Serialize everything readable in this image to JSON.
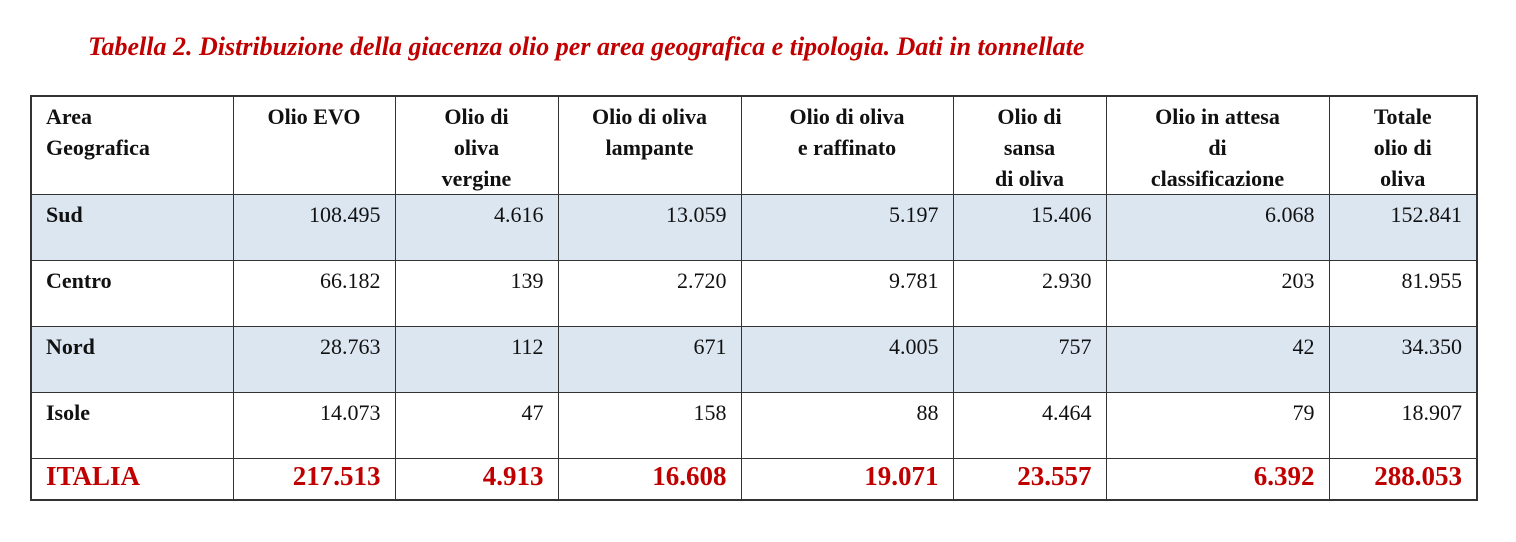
{
  "title": "Tabella 2. Distribuzione della giacenza olio per area geografica e tipologia. Dati in tonnellate",
  "table": {
    "header": [
      [
        "Area",
        "Geografica"
      ],
      [
        "Olio EVO"
      ],
      [
        "Olio di",
        "oliva",
        "vergine"
      ],
      [
        "Olio di oliva",
        "lampante"
      ],
      [
        "Olio di oliva",
        "e raffinato"
      ],
      [
        "Olio di",
        "sansa",
        "di oliva"
      ],
      [
        "Olio in attesa",
        "di",
        "classificazione"
      ],
      [
        "Totale",
        "olio di",
        "oliva"
      ]
    ],
    "rows": [
      [
        "Sud",
        "108.495",
        "4.616",
        "13.059",
        "5.197",
        "15.406",
        "6.068",
        "152.841"
      ],
      [
        "Centro",
        "66.182",
        "139",
        "2.720",
        "9.781",
        "2.930",
        "203",
        "81.955"
      ],
      [
        "Nord",
        "28.763",
        "112",
        "671",
        "4.005",
        "757",
        "42",
        "34.350"
      ],
      [
        "Isole",
        "14.073",
        "47",
        "158",
        "88",
        "4.464",
        "79",
        "18.907"
      ]
    ],
    "total": [
      "ITALIA",
      "217.513",
      "4.913",
      "16.608",
      "19.071",
      "23.557",
      "6.392",
      "288.053"
    ]
  }
}
